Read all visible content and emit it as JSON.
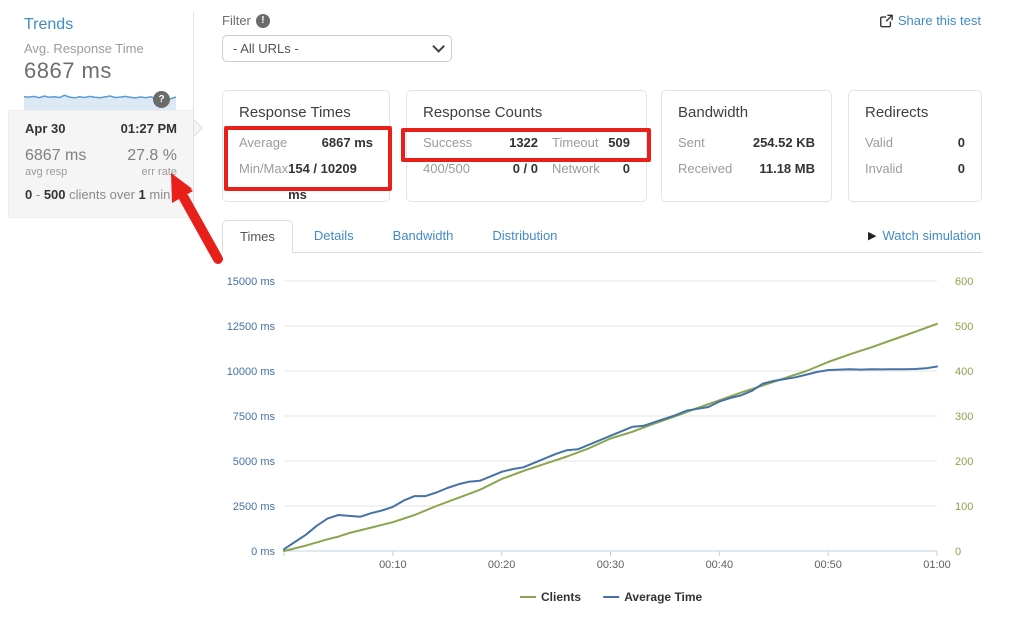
{
  "sidebar": {
    "title": "Trends",
    "metric_label": "Avg. Response Time",
    "metric_value": "6867 ms",
    "sparkline": {
      "color": "#5b9bd5",
      "fill": "#dce9f5",
      "values": [
        68,
        66,
        70,
        63,
        72,
        65,
        68,
        64,
        76,
        66,
        62,
        68,
        64,
        70,
        65,
        62,
        67,
        72,
        64,
        66,
        70,
        65,
        61,
        67,
        63,
        68,
        58,
        48,
        44,
        58,
        66
      ]
    },
    "selected": {
      "date": "Apr 30",
      "time": "01:27 PM",
      "avg_value": "6867 ms",
      "avg_label": "avg resp",
      "err_value": "27.8 %",
      "err_label": "err rate",
      "clients_min": "0",
      "clients_sep": "-",
      "clients_max": "500",
      "clients_text": "clients over",
      "clients_dur": "1",
      "clients_unit": "min"
    }
  },
  "icons": {
    "question": "?",
    "exclamation": "!",
    "play": "▶"
  },
  "filter": {
    "label": "Filter",
    "selected_option": "- All URLs -"
  },
  "share": {
    "label": "Share this test"
  },
  "cards": {
    "response_times": {
      "title": "Response Times",
      "rows": [
        {
          "label": "Average",
          "value": "6867 ms"
        },
        {
          "label": "Min/Max",
          "value": "154 / 10209 ms"
        }
      ]
    },
    "response_counts": {
      "title": "Response Counts",
      "rows": [
        [
          {
            "label": "Success",
            "value": "1322"
          },
          {
            "label": "Timeout",
            "value": "509"
          }
        ],
        [
          {
            "label": "400/500",
            "value": "0 / 0"
          },
          {
            "label": "Network",
            "value": "0"
          }
        ]
      ]
    },
    "bandwidth": {
      "title": "Bandwidth",
      "rows": [
        {
          "label": "Sent",
          "value": "254.52 KB"
        },
        {
          "label": "Received",
          "value": "11.18 MB"
        }
      ]
    },
    "redirects": {
      "title": "Redirects",
      "rows": [
        {
          "label": "Valid",
          "value": "0"
        },
        {
          "label": "Invalid",
          "value": "0"
        }
      ]
    }
  },
  "tabs": {
    "items": [
      {
        "label": "Times"
      },
      {
        "label": "Details"
      },
      {
        "label": "Bandwidth"
      },
      {
        "label": "Distribution"
      }
    ],
    "active": "Times"
  },
  "watch": {
    "label": "Watch simulation"
  },
  "annotations": {
    "color": "#e8201a",
    "highlights": [
      "response-times-average-minmax",
      "response-counts-success-timeout"
    ],
    "arrow_points_to": "err-rate"
  },
  "chart_data": {
    "type": "line",
    "title": "",
    "x_ticks": [
      "00:10",
      "00:20",
      "00:30",
      "00:40",
      "00:50",
      "01:00"
    ],
    "x_range_minutes": [
      0,
      60
    ],
    "grid": true,
    "legend_position": "bottom-center",
    "left_axis": {
      "ticks": [
        "0 ms",
        "2500 ms",
        "5000 ms",
        "7500 ms",
        "10000 ms",
        "12500 ms",
        "15000 ms"
      ],
      "min": 0,
      "max": 15000,
      "color": "#4572a7"
    },
    "right_axis": {
      "ticks": [
        "0",
        "100",
        "200",
        "300",
        "400",
        "500",
        "600"
      ],
      "min": 0,
      "max": 600,
      "color": "#89a54e"
    },
    "series": [
      {
        "name": "Clients",
        "color": "#89a54e",
        "axis": "right",
        "points": [
          [
            0,
            0
          ],
          [
            2,
            12
          ],
          [
            4,
            26
          ],
          [
            5,
            32
          ],
          [
            6,
            40
          ],
          [
            8,
            52
          ],
          [
            10,
            64
          ],
          [
            12,
            80
          ],
          [
            14,
            100
          ],
          [
            16,
            118
          ],
          [
            18,
            136
          ],
          [
            20,
            160
          ],
          [
            22,
            178
          ],
          [
            24,
            194
          ],
          [
            26,
            210
          ],
          [
            28,
            228
          ],
          [
            30,
            250
          ],
          [
            32,
            265
          ],
          [
            34,
            283
          ],
          [
            36,
            300
          ],
          [
            38,
            318
          ],
          [
            40,
            335
          ],
          [
            42,
            352
          ],
          [
            44,
            368
          ],
          [
            46,
            384
          ],
          [
            48,
            400
          ],
          [
            50,
            420
          ],
          [
            52,
            437
          ],
          [
            54,
            453
          ],
          [
            56,
            470
          ],
          [
            58,
            487
          ],
          [
            60,
            505
          ]
        ]
      },
      {
        "name": "Average Time",
        "color": "#4572a7",
        "axis": "left",
        "points": [
          [
            0,
            100
          ],
          [
            1,
            500
          ],
          [
            2,
            900
          ],
          [
            3,
            1400
          ],
          [
            4,
            1800
          ],
          [
            5,
            2000
          ],
          [
            6,
            1950
          ],
          [
            7,
            1900
          ],
          [
            8,
            2100
          ],
          [
            9,
            2250
          ],
          [
            10,
            2450
          ],
          [
            11,
            2800
          ],
          [
            12,
            3050
          ],
          [
            13,
            3050
          ],
          [
            14,
            3250
          ],
          [
            15,
            3500
          ],
          [
            16,
            3700
          ],
          [
            17,
            3850
          ],
          [
            18,
            3900
          ],
          [
            19,
            4150
          ],
          [
            20,
            4400
          ],
          [
            21,
            4550
          ],
          [
            22,
            4650
          ],
          [
            23,
            4900
          ],
          [
            24,
            5150
          ],
          [
            25,
            5400
          ],
          [
            26,
            5600
          ],
          [
            27,
            5650
          ],
          [
            28,
            5900
          ],
          [
            29,
            6150
          ],
          [
            30,
            6400
          ],
          [
            31,
            6650
          ],
          [
            32,
            6900
          ],
          [
            33,
            6950
          ],
          [
            34,
            7150
          ],
          [
            35,
            7350
          ],
          [
            36,
            7550
          ],
          [
            37,
            7800
          ],
          [
            38,
            7900
          ],
          [
            39,
            8000
          ],
          [
            40,
            8300
          ],
          [
            41,
            8500
          ],
          [
            42,
            8650
          ],
          [
            43,
            8900
          ],
          [
            44,
            9300
          ],
          [
            45,
            9450
          ],
          [
            46,
            9550
          ],
          [
            47,
            9650
          ],
          [
            48,
            9800
          ],
          [
            49,
            9950
          ],
          [
            50,
            10050
          ],
          [
            51,
            10080
          ],
          [
            52,
            10100
          ],
          [
            53,
            10080
          ],
          [
            54,
            10100
          ],
          [
            55,
            10090
          ],
          [
            56,
            10100
          ],
          [
            57,
            10100
          ],
          [
            58,
            10110
          ],
          [
            59,
            10150
          ],
          [
            60,
            10250
          ]
        ]
      }
    ]
  }
}
